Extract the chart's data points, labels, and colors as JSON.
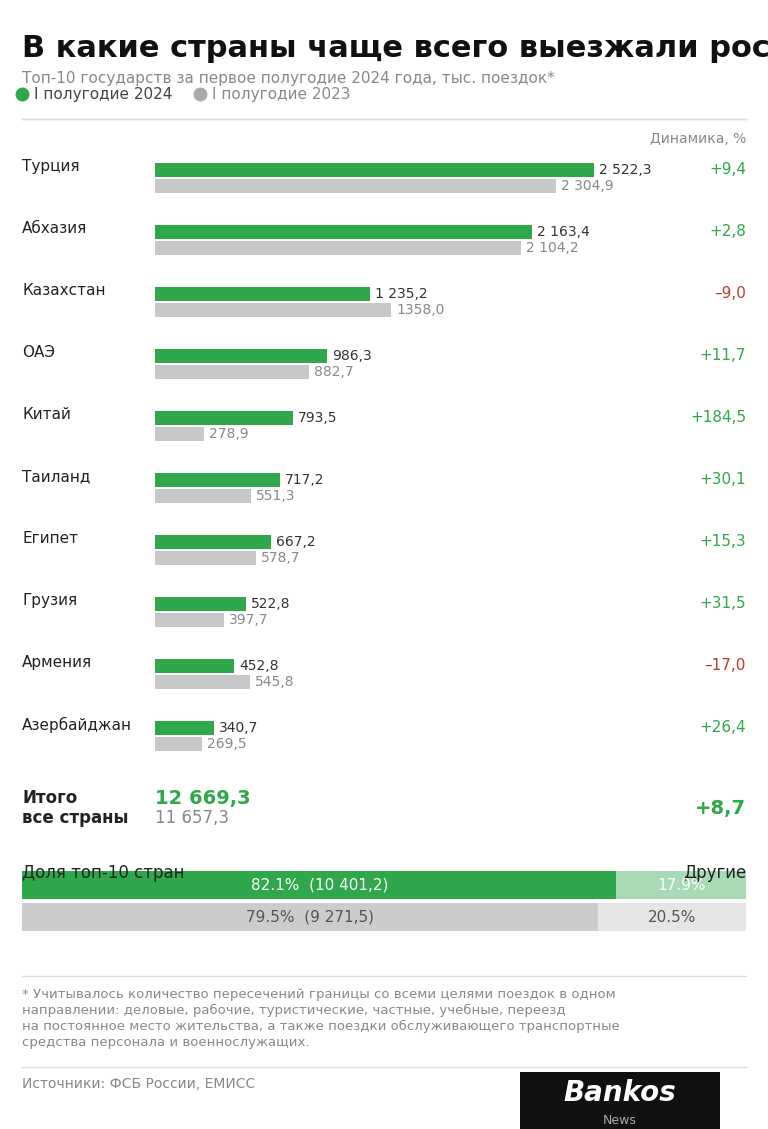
{
  "title": "В какие страны чаще всего выезжали россияне",
  "subtitle": "Топ-10 государств за первое полугодие 2024 года, тыс. поездок*",
  "legend_2024": "I полугодие 2024",
  "legend_2023": "I полугодие 2023",
  "dynamics_label": "Динамика, %",
  "countries": [
    "Турция",
    "Абхазия",
    "Казахстан",
    "ОАЭ",
    "Китай",
    "Таиланд",
    "Египет",
    "Грузия",
    "Армения",
    "Азербайджан"
  ],
  "values_2024": [
    2522.3,
    2163.4,
    1235.2,
    986.3,
    793.5,
    717.2,
    667.2,
    522.8,
    452.8,
    340.7
  ],
  "values_2023": [
    2304.9,
    2104.2,
    1358.0,
    882.7,
    278.9,
    551.3,
    578.7,
    397.7,
    545.8,
    269.5
  ],
  "labels_2024": [
    "2 522,3",
    "2 163,4",
    "1 235,2",
    "986,3",
    "793,5",
    "717,2",
    "667,2",
    "522,8",
    "452,8",
    "340,7"
  ],
  "labels_2023": [
    "2 304,9",
    "2 104,2",
    "1358,0",
    "882,7",
    "278,9",
    "551,3",
    "578,7",
    "397,7",
    "545,8",
    "269,5"
  ],
  "dynamics": [
    "+9,4",
    "+2,8",
    "–9,0",
    "+11,7",
    "+184,5",
    "+30,1",
    "+15,3",
    "+31,5",
    "–17,0",
    "+26,4"
  ],
  "dynamics_colors": [
    "#2ea84a",
    "#2ea84a",
    "#c0392b",
    "#2ea84a",
    "#2ea84a",
    "#2ea84a",
    "#2ea84a",
    "#2ea84a",
    "#c0392b",
    "#2ea84a"
  ],
  "color_2024": "#2ea84a",
  "color_2023": "#c8c8c8",
  "total_2024": "12 669,3",
  "total_2023": "11 657,3",
  "total_dynamics": "+8,7",
  "share_label": "Доля топ-10 стран",
  "other_label": "Другие",
  "share_2024_pct": 82.1,
  "share_2024_val": "10 401,2",
  "other_2024_pct": 17.9,
  "share_2023_pct": 79.5,
  "share_2023_val": "9 271,5",
  "other_2023_pct": 20.5,
  "footnote": "* Учитывалось количество пересечений границы со всеми целями поездок в одном\nнаправлении: деловые, рабочие, туристические, частные, учебные, переезд\nна постоянное место жительства, а также поездки обслуживающего транспортные\nсредства персонала и военнослужащих.",
  "source": "Источники: ФСБ России, ЕМИСС",
  "bg_color": "#ffffff",
  "text_color": "#333333",
  "gray_text": "#888888",
  "max_val": 2700
}
